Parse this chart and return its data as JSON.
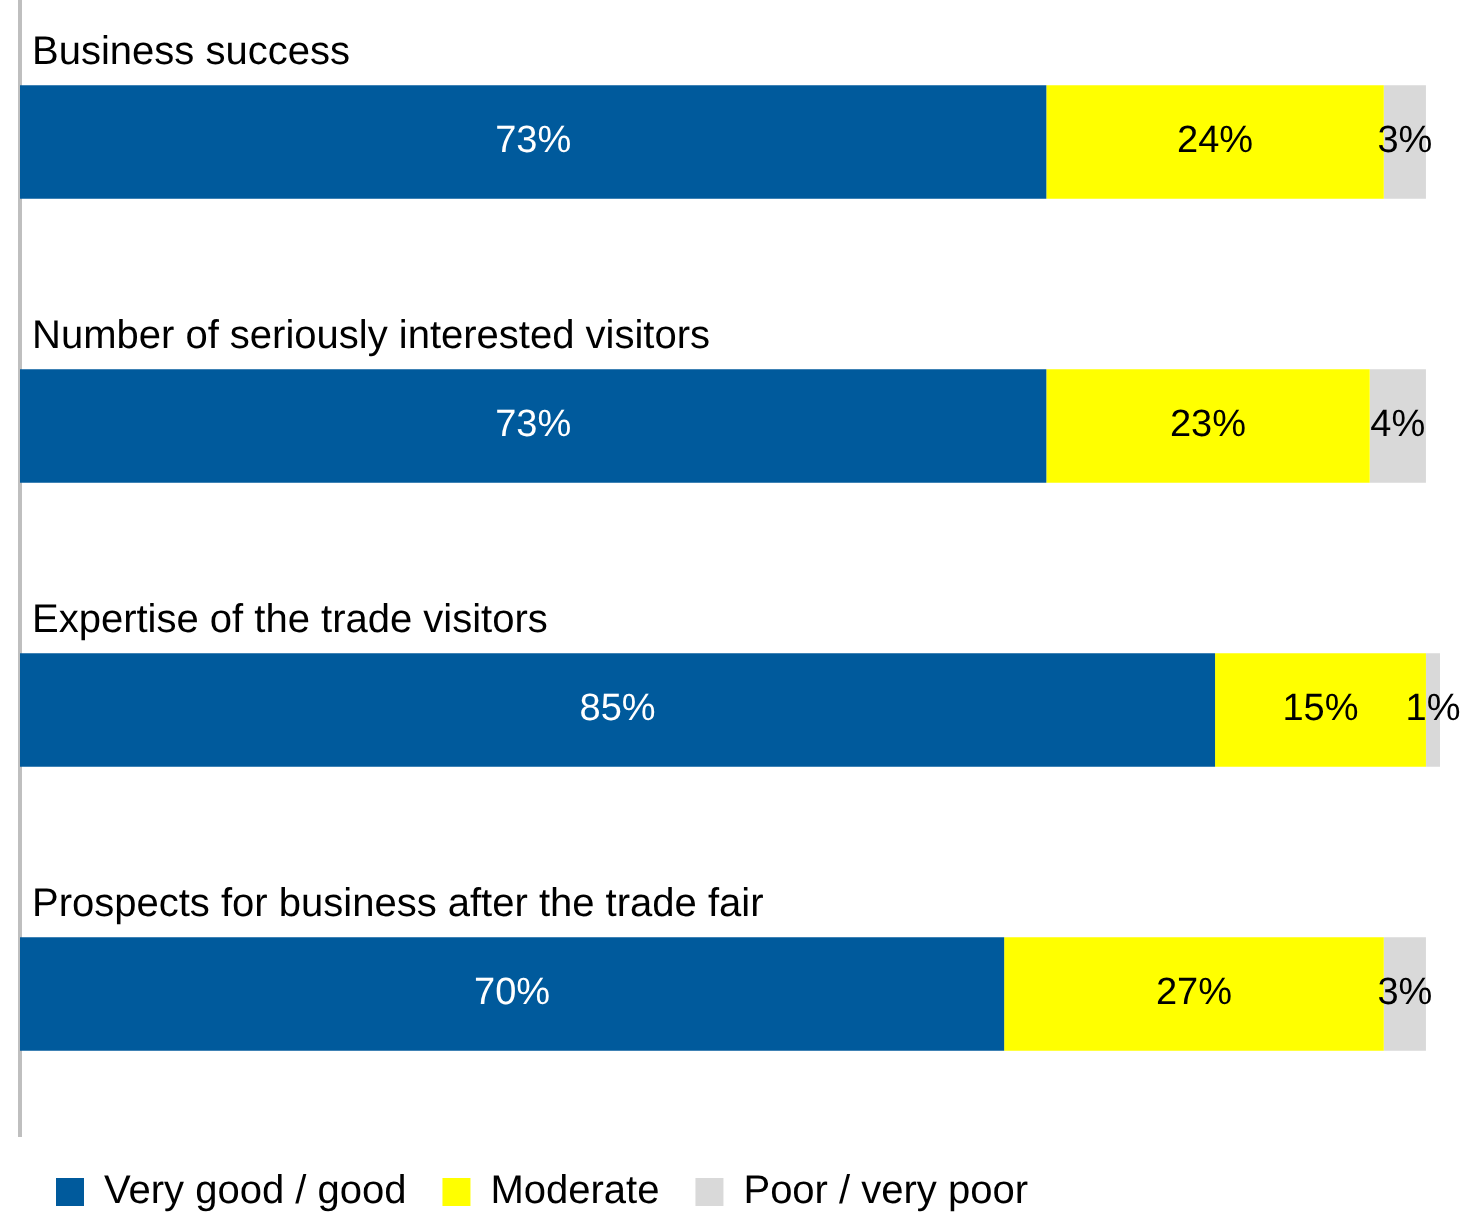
{
  "chart_data": {
    "type": "bar",
    "orientation": "horizontal",
    "stacked": true,
    "categories": [
      "Business success",
      "Number of seriously interested visitors",
      "Expertise of the trade visitors",
      "Prospects for business after the trade fair"
    ],
    "series": [
      {
        "name": "Very good / good",
        "color": "#005a9c",
        "values": [
          73,
          73,
          85,
          70
        ],
        "value_labels": [
          "73%",
          "73%",
          "85%",
          "70%"
        ]
      },
      {
        "name": "Moderate",
        "color": "#ffff00",
        "values": [
          24,
          23,
          15,
          27
        ],
        "value_labels": [
          "24%",
          "23%",
          "15%",
          "27%"
        ]
      },
      {
        "name": "Poor / very poor",
        "color": "#d9d9d9",
        "values": [
          3,
          4,
          1,
          3
        ],
        "value_labels": [
          "3%",
          "4%",
          "1%",
          "3%"
        ]
      }
    ],
    "xlim": [
      0,
      101
    ],
    "grid": false,
    "legend": "bottom left"
  }
}
